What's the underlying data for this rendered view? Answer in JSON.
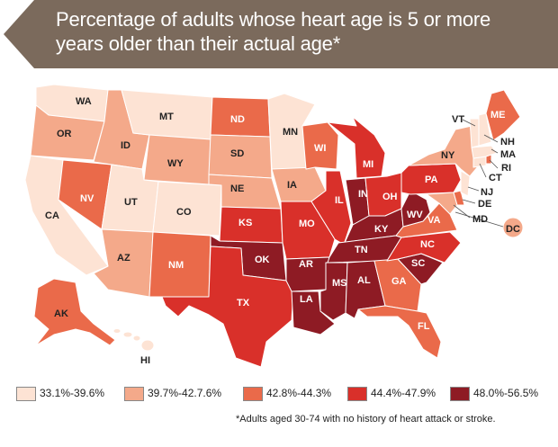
{
  "title": {
    "line1": "Percentage of adults whose heart age is 5 or more",
    "line2": "years older than their actual age*"
  },
  "colors": {
    "banner": "#7b6a5c",
    "c1": "#fde3d4",
    "c2": "#f4a98a",
    "c3": "#ea6a4a",
    "c4": "#d9302a",
    "c5": "#8e1b24"
  },
  "legend": [
    {
      "label": "33.1%-39.6%",
      "color": "#fde3d4"
    },
    {
      "label": "39.7%-42.7.6%",
      "color": "#f4a98a"
    },
    {
      "label": "42.8%-44.3%",
      "color": "#ea6a4a"
    },
    {
      "label": "44.4%-47.9%",
      "color": "#d9302a"
    },
    {
      "label": "48.0%-56.5%",
      "color": "#8e1b24"
    }
  ],
  "states": {
    "WA": "c1",
    "MT": "c1",
    "MN": "c1",
    "UT": "c1",
    "CO": "c1",
    "CA": "c1",
    "VT": "c1",
    "NH": "c1",
    "MA": "c1",
    "CT": "c1",
    "NJ": "c1",
    "HI": "c1",
    "OR": "c2",
    "ID": "c2",
    "WY": "c2",
    "SD": "c2",
    "NE": "c2",
    "IA": "c2",
    "AZ": "c2",
    "NY": "c2",
    "DC": "c2",
    "MD": "c2",
    "ND": "c3",
    "NV": "c3",
    "WI": "c3",
    "NM": "c3",
    "VA": "c3",
    "GA": "c3",
    "FL": "c3",
    "AK": "c3",
    "ME": "c3",
    "RI": "c3",
    "DE": "c3",
    "KS": "c4",
    "MO": "c4",
    "IL": "c4",
    "MI": "c4",
    "OH": "c4",
    "PA": "c4",
    "TX": "c4",
    "NC": "c4",
    "OK": "c5",
    "AR": "c5",
    "LA": "c5",
    "MS": "c5",
    "AL": "c5",
    "TN": "c5",
    "KY": "c5",
    "IN": "c5",
    "WV": "c5",
    "SC": "c5"
  },
  "footnote": "*Adults aged 30-74 with no history of heart attack or stroke."
}
